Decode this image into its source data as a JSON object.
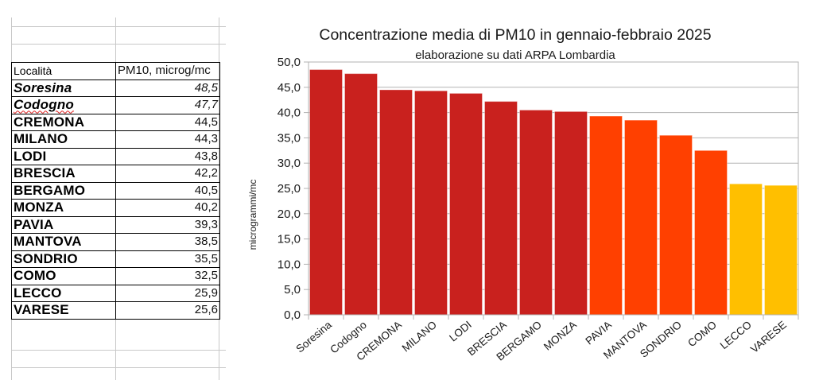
{
  "sheet": {
    "headers": [
      "Località",
      "PM10, microg/mc"
    ],
    "rows": [
      {
        "city": "Soresina",
        "value": "48,5",
        "italic": true
      },
      {
        "city": "Codogno",
        "value": "47,7",
        "italic": true
      },
      {
        "city": "CREMONA",
        "value": "44,5"
      },
      {
        "city": "MILANO",
        "value": "44,3"
      },
      {
        "city": "LODI",
        "value": "43,8"
      },
      {
        "city": "BRESCIA",
        "value": "42,2"
      },
      {
        "city": "BERGAMO",
        "value": "40,5"
      },
      {
        "city": "MONZA",
        "value": "40,2"
      },
      {
        "city": "PAVIA",
        "value": "39,3"
      },
      {
        "city": "MANTOVA",
        "value": "38,5"
      },
      {
        "city": "SONDRIO",
        "value": "35,5"
      },
      {
        "city": "COMO",
        "value": "32,5"
      },
      {
        "city": "LECCO",
        "value": "25,9"
      },
      {
        "city": "VARESE",
        "value": "25,6"
      }
    ]
  },
  "colors": {
    "red": "#c9211e",
    "orange": "#ff4000",
    "yellow": "#ffbf00",
    "grid": "#b3b3b3"
  },
  "chart_data": {
    "type": "bar",
    "title": "Concentrazione media di PM10 in gennaio-febbraio 2025",
    "subtitle": "elaborazione su dati ARPA Lombardia",
    "xlabel": "",
    "ylabel": "microgrammi/mc",
    "ylim": [
      0,
      50
    ],
    "yticks": [
      "0,0",
      "5,0",
      "10,0",
      "15,0",
      "20,0",
      "25,0",
      "30,0",
      "35,0",
      "40,0",
      "45,0",
      "50,0"
    ],
    "grid": true,
    "legend": "none",
    "categories": [
      "Soresina",
      "Codogno",
      "CREMONA",
      "MILANO",
      "LODI",
      "BRESCIA",
      "BERGAMO",
      "MONZA",
      "PAVIA",
      "MANTOVA",
      "SONDRIO",
      "COMO",
      "LECCO",
      "VARESE"
    ],
    "values": [
      48.5,
      47.7,
      44.5,
      44.3,
      43.8,
      42.2,
      40.5,
      40.2,
      39.3,
      38.5,
      35.5,
      32.5,
      25.9,
      25.6
    ],
    "bar_colors": [
      "red",
      "red",
      "red",
      "red",
      "red",
      "red",
      "red",
      "red",
      "orange",
      "orange",
      "orange",
      "orange",
      "yellow",
      "yellow"
    ]
  }
}
